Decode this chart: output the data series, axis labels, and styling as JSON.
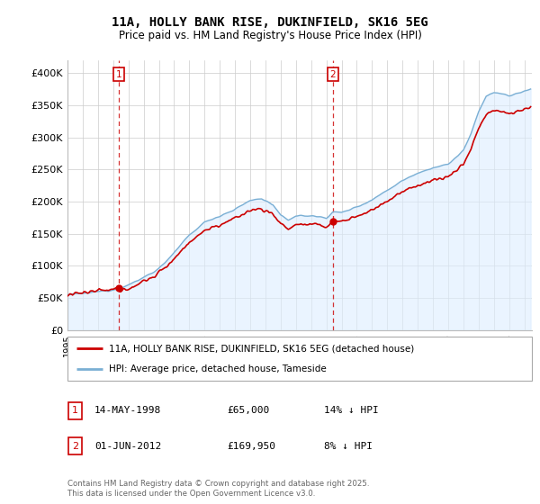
{
  "title_line1": "11A, HOLLY BANK RISE, DUKINFIELD, SK16 5EG",
  "title_line2": "Price paid vs. HM Land Registry's House Price Index (HPI)",
  "ylim": [
    0,
    420000
  ],
  "yticks": [
    0,
    50000,
    100000,
    150000,
    200000,
    250000,
    300000,
    350000,
    400000
  ],
  "ytick_labels": [
    "£0",
    "£50K",
    "£100K",
    "£150K",
    "£200K",
    "£250K",
    "£300K",
    "£350K",
    "£400K"
  ],
  "xlim_start": 1995,
  "xlim_end": 2025.5,
  "sale1_date": 1998.37,
  "sale1_price": 65000,
  "sale2_date": 2012.42,
  "sale2_price": 169950,
  "line_color_property": "#cc0000",
  "line_color_hpi": "#7aafd4",
  "fill_color_hpi": "#ddeeff",
  "legend_label_property": "11A, HOLLY BANK RISE, DUKINFIELD, SK16 5EG (detached house)",
  "legend_label_hpi": "HPI: Average price, detached house, Tameside",
  "table_row1": [
    "1",
    "14-MAY-1998",
    "£65,000",
    "14% ↓ HPI"
  ],
  "table_row2": [
    "2",
    "01-JUN-2012",
    "£169,950",
    "8% ↓ HPI"
  ],
  "footer": "Contains HM Land Registry data © Crown copyright and database right 2025.\nThis data is licensed under the Open Government Licence v3.0.",
  "grid_color": "#cccccc",
  "vline_color": "#cc0000"
}
